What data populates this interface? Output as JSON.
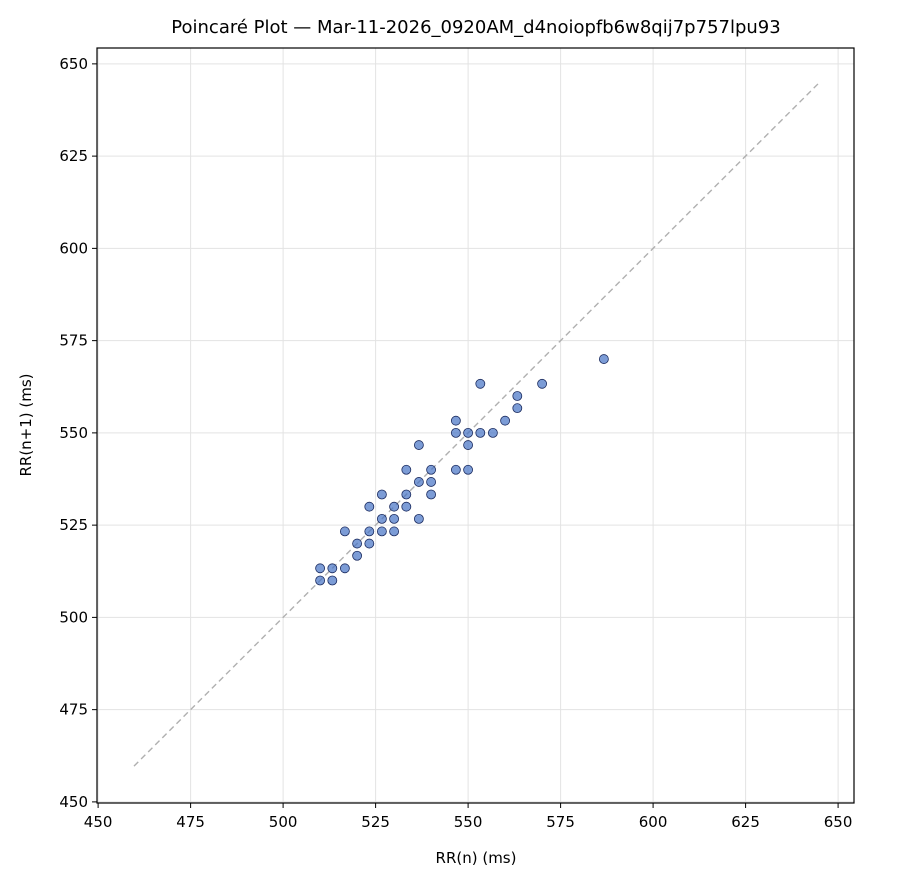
{
  "chart_data": {
    "type": "scatter",
    "title": "Poincaré Plot — Mar-11-2026_0920AM_d4noiopfb6w8qij7p757lpu93",
    "xlabel": "RR(n) (ms)",
    "ylabel": "RR(n+1) (ms)",
    "x": [
      510,
      510,
      513.3,
      513.3,
      516.7,
      516.7,
      520,
      520,
      523.3,
      523.3,
      523.3,
      526.7,
      526.7,
      526.7,
      530,
      530,
      530,
      533.3,
      533.3,
      533.3,
      536.7,
      536.7,
      536.7,
      540,
      540,
      540,
      546.7,
      546.7,
      546.7,
      550,
      550,
      550,
      553.3,
      553.3,
      556.7,
      560,
      563.3,
      563.3,
      570,
      586.7
    ],
    "y": [
      513.3,
      510,
      513.3,
      510,
      513.3,
      523.3,
      516.7,
      520,
      520,
      523.3,
      530,
      526.7,
      523.3,
      533.3,
      530,
      526.7,
      523.3,
      530,
      533.3,
      540,
      536.7,
      546.7,
      526.7,
      536.7,
      540,
      533.3,
      540,
      550,
      553.3,
      546.7,
      550,
      540,
      563.3,
      550,
      550,
      553.3,
      560,
      556.7,
      563.3,
      570
    ],
    "color": "#4472c4",
    "edge_color": "#1a2a5e",
    "reference_line": [
      459.7,
      644.6
    ],
    "xlim": [
      449.7,
      654.3
    ],
    "ylim": [
      449.7,
      654.3
    ],
    "xticks": [
      450,
      475,
      500,
      525,
      550,
      575,
      600,
      625,
      650
    ],
    "yticks": [
      450,
      475,
      500,
      525,
      550,
      575,
      600,
      625,
      650
    ],
    "grid": true
  }
}
